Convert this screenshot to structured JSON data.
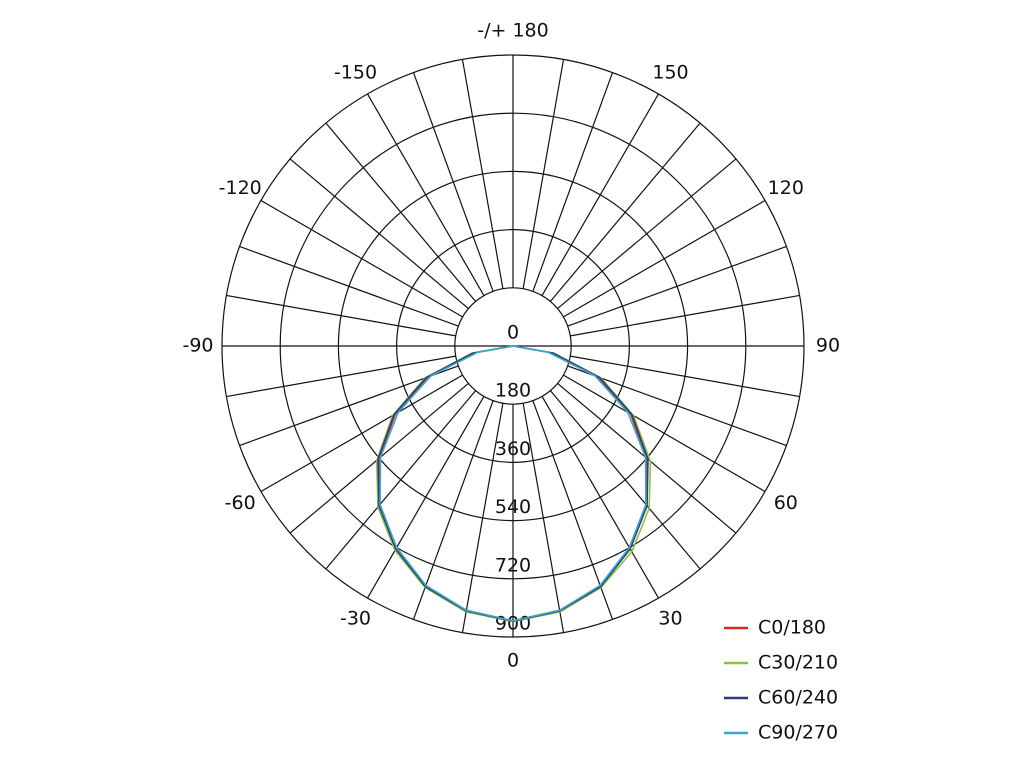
{
  "chart_data": {
    "type": "polar",
    "x": [
      -90,
      -80,
      -70,
      -60,
      -50,
      -40,
      -30,
      -20,
      -10,
      0,
      10,
      20,
      30,
      40,
      50,
      60,
      70,
      80,
      90
    ],
    "series": [
      {
        "name": "C0/180",
        "color": "#d42a20",
        "values": [
          0,
          120,
          280,
          420,
          540,
          640,
          720,
          790,
          830,
          850,
          830,
          790,
          720,
          640,
          540,
          420,
          280,
          120,
          0
        ]
      },
      {
        "name": "C30/210",
        "color": "#8cc43c",
        "values": [
          0,
          130,
          290,
          430,
          550,
          650,
          730,
          795,
          835,
          852,
          835,
          795,
          735,
          655,
          555,
          430,
          290,
          130,
          0
        ]
      },
      {
        "name": "C60/240",
        "color": "#2a3f7a",
        "values": [
          0,
          125,
          285,
          425,
          545,
          645,
          725,
          792,
          832,
          851,
          832,
          792,
          725,
          645,
          545,
          425,
          285,
          125,
          0
        ]
      },
      {
        "name": "C90/270",
        "color": "#3aa6d0",
        "values": [
          0,
          110,
          270,
          410,
          535,
          640,
          720,
          788,
          830,
          850,
          830,
          788,
          720,
          640,
          535,
          410,
          270,
          110,
          0
        ]
      }
    ],
    "rlim": [
      0,
      900
    ],
    "rticks": [
      0,
      180,
      360,
      540,
      720,
      900
    ],
    "thetaticks": [
      0,
      30,
      60,
      90,
      120,
      150,
      {
        "value": 180,
        "label": "-/+ 180"
      },
      -150,
      -120,
      -90,
      -60,
      -30
    ],
    "theta_gridlines": [
      0,
      10,
      20,
      30,
      40,
      50,
      60,
      70,
      80,
      90,
      100,
      110,
      120,
      130,
      140,
      150,
      160,
      170,
      180,
      190,
      200,
      210,
      220,
      230,
      240,
      250,
      260,
      270,
      280,
      290,
      300,
      310,
      320,
      330,
      340,
      350
    ],
    "legend": "bottom-right"
  }
}
